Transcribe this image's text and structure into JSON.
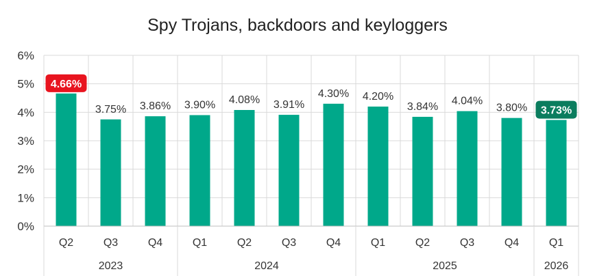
{
  "chart_data": {
    "type": "bar",
    "title": "Spy Trojans, backdoors and keyloggers",
    "xlabel": "",
    "ylabel": "",
    "ylim": [
      0,
      6
    ],
    "yticks": [
      "0%",
      "1%",
      "2%",
      "3%",
      "4%",
      "5%",
      "6%"
    ],
    "grid": true,
    "categories": [
      "Q2",
      "Q3",
      "Q4",
      "Q1",
      "Q2",
      "Q3",
      "Q4",
      "Q1",
      "Q2",
      "Q3",
      "Q4",
      "Q1"
    ],
    "values": [
      4.66,
      3.75,
      3.86,
      3.9,
      4.08,
      3.91,
      4.3,
      4.2,
      3.84,
      4.04,
      3.8,
      3.73
    ],
    "value_labels": [
      "4.66%",
      "3.75%",
      "3.86%",
      "3.90%",
      "4.08%",
      "3.91%",
      "4.30%",
      "4.20%",
      "3.84%",
      "4.04%",
      "3.80%",
      "3.73%"
    ],
    "groups": [
      {
        "label": "2023",
        "count": 3
      },
      {
        "label": "2024",
        "count": 4
      },
      {
        "label": "2025",
        "count": 4
      },
      {
        "label": "2026",
        "count": 1
      }
    ],
    "highlights": [
      {
        "index": 0,
        "color": "#e8141f"
      },
      {
        "index": 11,
        "color": "#0b7d5e"
      }
    ],
    "bar_color": "#00a88a"
  }
}
